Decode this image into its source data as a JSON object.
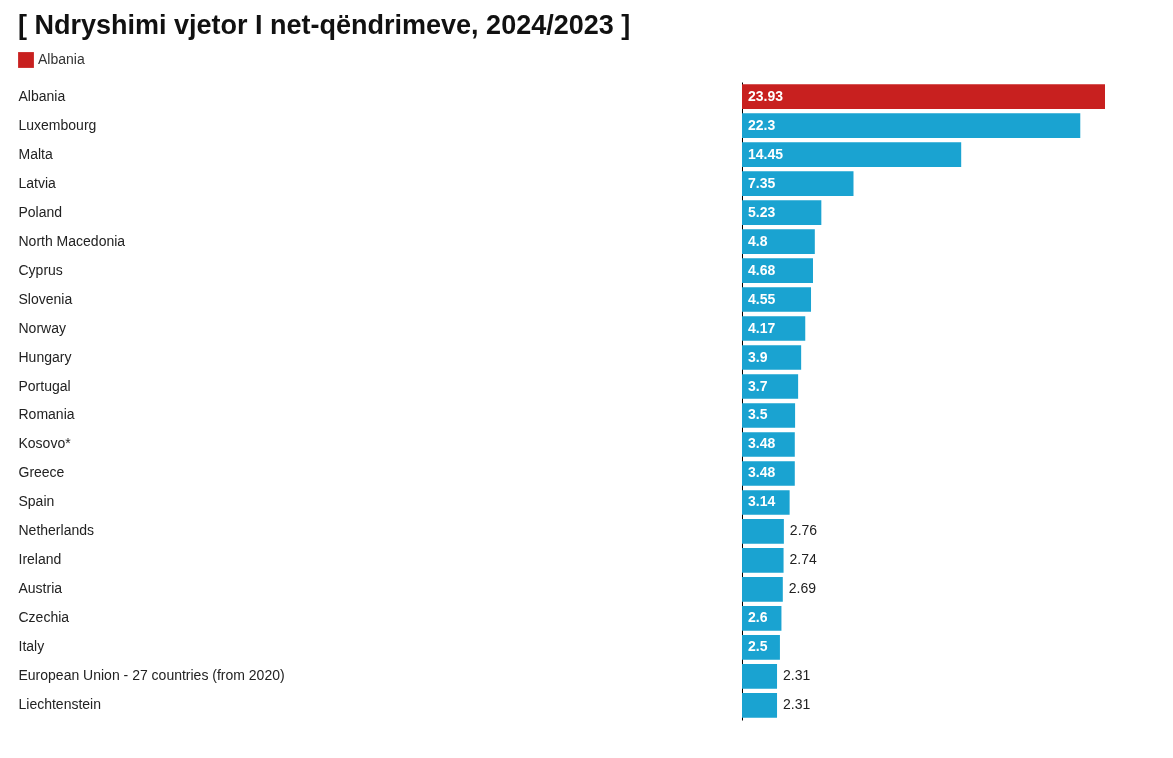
{
  "chart_data": {
    "type": "bar",
    "orientation": "horizontal",
    "title": "[ Ndryshimi vjetor I net-qëndrimeve, 2024/2023 ]",
    "categories": [
      "Albania",
      "Luxembourg",
      "Malta",
      "Latvia",
      "Poland",
      "North Macedonia",
      "Cyprus",
      "Slovenia",
      "Norway",
      "Hungary",
      "Portugal",
      "Romania",
      "Kosovo*",
      "Greece",
      "Spain",
      "Netherlands",
      "Ireland",
      "Austria",
      "Czechia",
      "Italy",
      "European Union - 27 countries (from 2020)",
      "Liechtenstein"
    ],
    "series": [
      {
        "name": "Albania",
        "color": "#c8201f",
        "values": [
          23.93,
          null,
          null,
          null,
          null,
          null,
          null,
          null,
          null,
          null,
          null,
          null,
          null,
          null,
          null,
          null,
          null,
          null,
          null,
          null,
          null,
          null
        ]
      },
      {
        "color": "#1aa3d1",
        "values": [
          null,
          22.3,
          14.45,
          7.35,
          5.23,
          4.8,
          4.68,
          4.55,
          4.17,
          3.9,
          3.7,
          3.5,
          3.48,
          3.48,
          3.14,
          2.76,
          2.74,
          2.69,
          2.6,
          2.5,
          2.31,
          2.31
        ]
      }
    ],
    "data_labels": true,
    "legend": "top left",
    "grid": false
  }
}
